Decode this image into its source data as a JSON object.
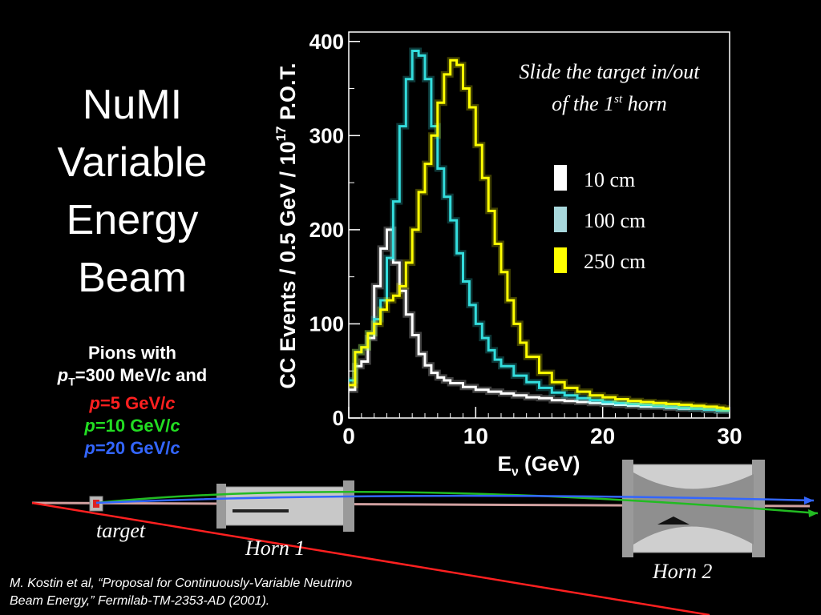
{
  "slide": {
    "title_lines": [
      "NuMI",
      "Variable",
      "Energy",
      "Beam"
    ],
    "pions": {
      "line1": "Pions with",
      "pt_p": "p",
      "pt_sub": "T",
      "pt_rest": "=300 MeV/",
      "pt_c": "c",
      "pt_and": " and",
      "lines": [
        {
          "p": "p",
          "value": "=5 GeV/",
          "c": "c",
          "color": "#ff2020"
        },
        {
          "p": "p",
          "value": "=10 GeV/",
          "c": "c",
          "color": "#22dd22"
        },
        {
          "p": "p",
          "value": "=20 GeV/",
          "c": "c",
          "color": "#3366ff"
        }
      ]
    },
    "citation_line1": "M. Kostin et al,  “Proposal for Continuously-Variable Neutrino",
    "citation_line2": "Beam Energy,” Fermilab-TM-2353-AD (2001).",
    "beamline_labels": {
      "target": "target",
      "horn1": "Horn 1",
      "horn2": "Horn 2"
    }
  },
  "chart_data": {
    "type": "line",
    "ylabel_main": "CC Events / 0.5 GeV / 10",
    "ylabel_sup": "17",
    "ylabel_end": " P.O.T.",
    "xlabel_main": "E",
    "xlabel_sub": "ν",
    "xlabel_end": " (GeV)",
    "xlim": [
      0,
      30
    ],
    "ylim": [
      0,
      410
    ],
    "xticks": [
      0,
      10,
      20,
      30
    ],
    "yticks": [
      0,
      100,
      200,
      300,
      400
    ],
    "annotation_line1": "Slide the target in/out",
    "annotation_line2_pre": "of the 1",
    "annotation_line2_sup": "st",
    "annotation_line2_post": " horn",
    "legend": [
      {
        "label": "10 cm",
        "color": "#ffffff"
      },
      {
        "label": "100 cm",
        "color": "#a8d8dc"
      },
      {
        "label": "250 cm",
        "color": "#ffff00"
      }
    ],
    "legend_placement": "right",
    "series": [
      {
        "label_ref": "10 cm",
        "color": "#ffffff",
        "x": [
          0,
          0.5,
          1,
          1.5,
          2,
          2.5,
          3,
          3.5,
          4,
          4.5,
          5,
          5.5,
          6,
          6.5,
          7,
          7.5,
          8,
          9,
          10,
          11,
          12,
          13,
          14,
          15,
          16,
          17,
          18,
          19,
          20,
          21,
          22,
          23,
          24,
          25,
          26,
          27,
          28,
          29,
          29.5
        ],
        "y": [
          30,
          55,
          60,
          85,
          140,
          180,
          200,
          165,
          135,
          110,
          88,
          68,
          56,
          48,
          43,
          40,
          37,
          33,
          30,
          28,
          26,
          24,
          22,
          21,
          19,
          18,
          17,
          16,
          15,
          14,
          13,
          12,
          12,
          11,
          10,
          10,
          9,
          8,
          8
        ]
      },
      {
        "label_ref": "100 cm",
        "color": "#33dddd",
        "x": [
          0,
          0.5,
          1,
          1.5,
          2,
          2.5,
          3,
          3.5,
          4,
          4.5,
          5,
          5.5,
          6,
          6.5,
          7,
          7.5,
          8,
          8.5,
          9,
          9.5,
          10,
          10.5,
          11,
          11.5,
          12,
          13,
          14,
          15,
          16,
          17,
          18,
          19,
          20,
          21,
          22,
          23,
          24,
          25,
          26,
          27,
          28,
          29,
          29.5
        ],
        "y": [
          40,
          70,
          75,
          90,
          105,
          125,
          170,
          230,
          310,
          360,
          390,
          385,
          360,
          310,
          265,
          235,
          210,
          175,
          145,
          120,
          100,
          85,
          72,
          62,
          55,
          45,
          38,
          32,
          27,
          24,
          21,
          19,
          17,
          16,
          15,
          14,
          13,
          12,
          11,
          10,
          9,
          8,
          8
        ]
      },
      {
        "label_ref": "250 cm",
        "color": "#ffff00",
        "x": [
          0,
          0.5,
          1,
          1.5,
          2,
          2.5,
          3,
          3.5,
          4,
          4.5,
          5,
          5.5,
          6,
          6.5,
          7,
          7.5,
          8,
          8.5,
          9,
          9.5,
          10,
          10.5,
          11,
          11.5,
          12,
          12.5,
          13,
          13.5,
          14,
          15,
          16,
          17,
          18,
          19,
          20,
          21,
          22,
          23,
          24,
          25,
          26,
          27,
          28,
          29,
          29.5
        ],
        "y": [
          35,
          70,
          75,
          90,
          100,
          115,
          125,
          130,
          140,
          165,
          200,
          240,
          270,
          300,
          335,
          365,
          380,
          375,
          350,
          330,
          290,
          255,
          220,
          185,
          155,
          125,
          100,
          80,
          65,
          48,
          38,
          32,
          28,
          24,
          22,
          20,
          18,
          17,
          16,
          15,
          14,
          13,
          12,
          11,
          10
        ]
      }
    ]
  }
}
